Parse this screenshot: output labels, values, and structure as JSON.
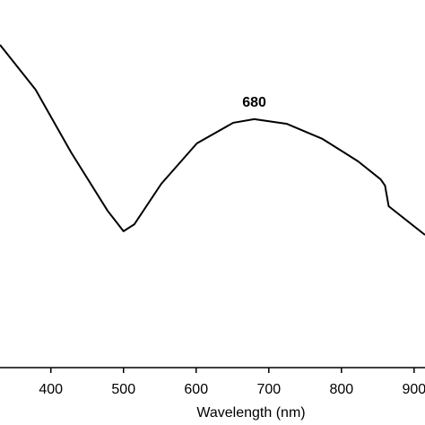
{
  "chart_data": {
    "type": "line",
    "x_label": "Wavelength (nm)",
    "x": [
      330,
      379,
      428,
      478,
      500,
      515,
      552,
      601,
      651,
      680,
      725,
      774,
      823,
      854,
      860,
      865,
      915
    ],
    "series": [
      {
        "color": "#000000",
        "values": [
          0.878,
          0.756,
          0.585,
          0.427,
          0.371,
          0.39,
          0.5,
          0.61,
          0.666,
          0.676,
          0.663,
          0.622,
          0.561,
          0.512,
          0.495,
          0.439,
          0.361
        ]
      }
    ],
    "xlim": [
      330,
      915
    ],
    "xticks": [
      400,
      500,
      600,
      700,
      800,
      900
    ],
    "ylim": [
      0,
      1
    ],
    "annotations": [
      {
        "text": "680",
        "x": 680,
        "y": 0.676
      }
    ]
  }
}
